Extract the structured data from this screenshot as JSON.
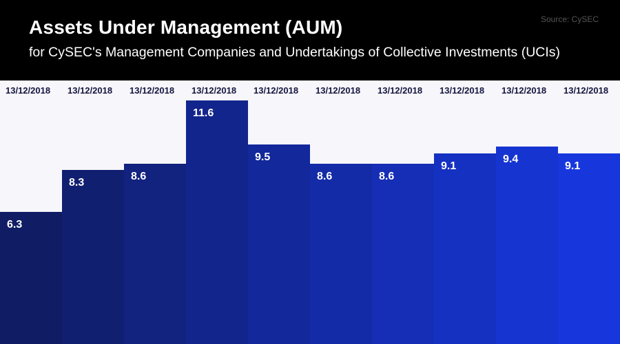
{
  "header": {
    "title": "Assets Under Management (AUM)",
    "subtitle": "for CySEC's Management Companies and Undertakings of Collective Investments (UCIs)",
    "source": "Source: CySEC"
  },
  "chart_data": {
    "type": "bar",
    "title": "Assets Under Management (AUM)",
    "subtitle": "for CySEC's Management Companies and Undertakings of Collective Investments (UCIs)",
    "source": "Source: CySEC",
    "categories": [
      "13/12/2018",
      "13/12/2018",
      "13/12/2018",
      "13/12/2018",
      "13/12/2018",
      "13/12/2018",
      "13/12/2018",
      "13/12/2018",
      "13/12/2018",
      "13/12/2018"
    ],
    "values": [
      6.3,
      8.3,
      8.6,
      11.6,
      9.5,
      8.6,
      8.6,
      9.1,
      9.4,
      9.1
    ],
    "bar_colors": [
      "#101c64",
      "#111f71",
      "#12227f",
      "#12258c",
      "#13289a",
      "#142ba7",
      "#152eb5",
      "#1531c2",
      "#1634d0",
      "#1737dd"
    ],
    "value_label_color": "#ffffff",
    "category_label_color": "#15153f",
    "plot_background": "#f6f6fb",
    "header_background": "#000000",
    "ylim": [
      0,
      12.56
    ],
    "grid": false,
    "legend": "none",
    "xlabel": "",
    "ylabel": ""
  }
}
